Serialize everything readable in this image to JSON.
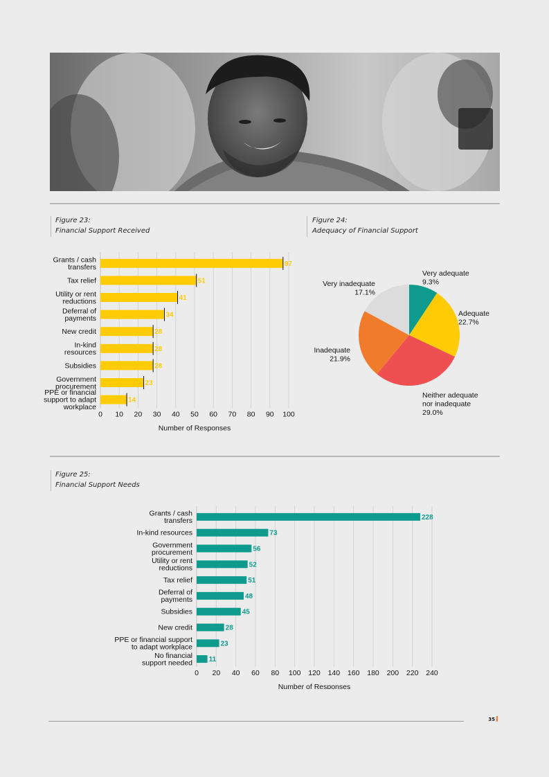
{
  "photo": {
    "description_icon": "photo-smiling-man"
  },
  "figure23": {
    "label": "Figure 23:",
    "title": "Financial Support Received"
  },
  "figure24": {
    "label": "Figure 24:",
    "title": "Adequacy of Financial Support"
  },
  "figure25": {
    "label": "Figure 25:",
    "title": "Financial Support Needs"
  },
  "page_number": "35",
  "colors": {
    "yellow": "#ffcb05",
    "teal": "#0e9b8e",
    "orange": "#f07c2b"
  },
  "chart_data": [
    {
      "type": "bar",
      "orientation": "horizontal",
      "title": "Financial Support Received",
      "categories": [
        [
          "Grants / cash",
          "transfers"
        ],
        [
          "Tax relief"
        ],
        [
          "Utility or rent",
          "reductions"
        ],
        [
          "Deferral of",
          "payments"
        ],
        [
          "New credit"
        ],
        [
          "In-kind",
          "resources"
        ],
        [
          "Subsidies"
        ],
        [
          "Government",
          "procurement"
        ],
        [
          "PPE or financial",
          "support to adapt",
          "workplace"
        ]
      ],
      "values": [
        97,
        51,
        41,
        34,
        28,
        28,
        28,
        23,
        14
      ],
      "xlabel": "Number of Responses",
      "ylabel": "",
      "xlim": [
        0,
        100
      ],
      "ticks": [
        0,
        10,
        20,
        30,
        40,
        50,
        60,
        70,
        80,
        90,
        100
      ],
      "color": "#ffcb05",
      "grid": true
    },
    {
      "type": "pie",
      "title": "Adequacy of Financial Support",
      "slices": [
        {
          "label": [
            "Very adequate"
          ],
          "pct": "9.3%",
          "value": 9.3,
          "color": "#0e9b8e"
        },
        {
          "label": [
            "Adequate"
          ],
          "pct": "22.7%",
          "value": 22.7,
          "color": "#ffcb05"
        },
        {
          "label": [
            "Neither adequate",
            "nor inadequate"
          ],
          "pct": "29.0%",
          "value": 29.0,
          "color": "#ee4f50"
        },
        {
          "label": [
            "Inadequate"
          ],
          "pct": "21.9%",
          "value": 21.9,
          "color": "#f07c2b"
        },
        {
          "label": [
            "Very inadequate"
          ],
          "pct": "17.1%",
          "value": 17.1,
          "color": "#dcdcdc"
        }
      ]
    },
    {
      "type": "bar",
      "orientation": "horizontal",
      "title": "Financial Support Needs",
      "categories": [
        [
          "Grants / cash",
          "transfers"
        ],
        [
          "In-kind resources"
        ],
        [
          "Government",
          "procurement"
        ],
        [
          "Utility or rent",
          "reductions"
        ],
        [
          "Tax relief"
        ],
        [
          "Deferral of",
          "payments"
        ],
        [
          "Subsidies"
        ],
        [
          "New credit"
        ],
        [
          "PPE or financial support",
          "to adapt workplace"
        ],
        [
          "No financial",
          "support needed"
        ]
      ],
      "values": [
        228,
        73,
        56,
        52,
        51,
        48,
        45,
        28,
        23,
        11
      ],
      "xlabel": "Number of Responses",
      "ylabel": "",
      "xlim": [
        0,
        240
      ],
      "ticks": [
        0,
        20,
        40,
        60,
        80,
        100,
        120,
        140,
        160,
        180,
        200,
        220,
        240
      ],
      "color": "#0e9b8e",
      "grid": true
    }
  ]
}
